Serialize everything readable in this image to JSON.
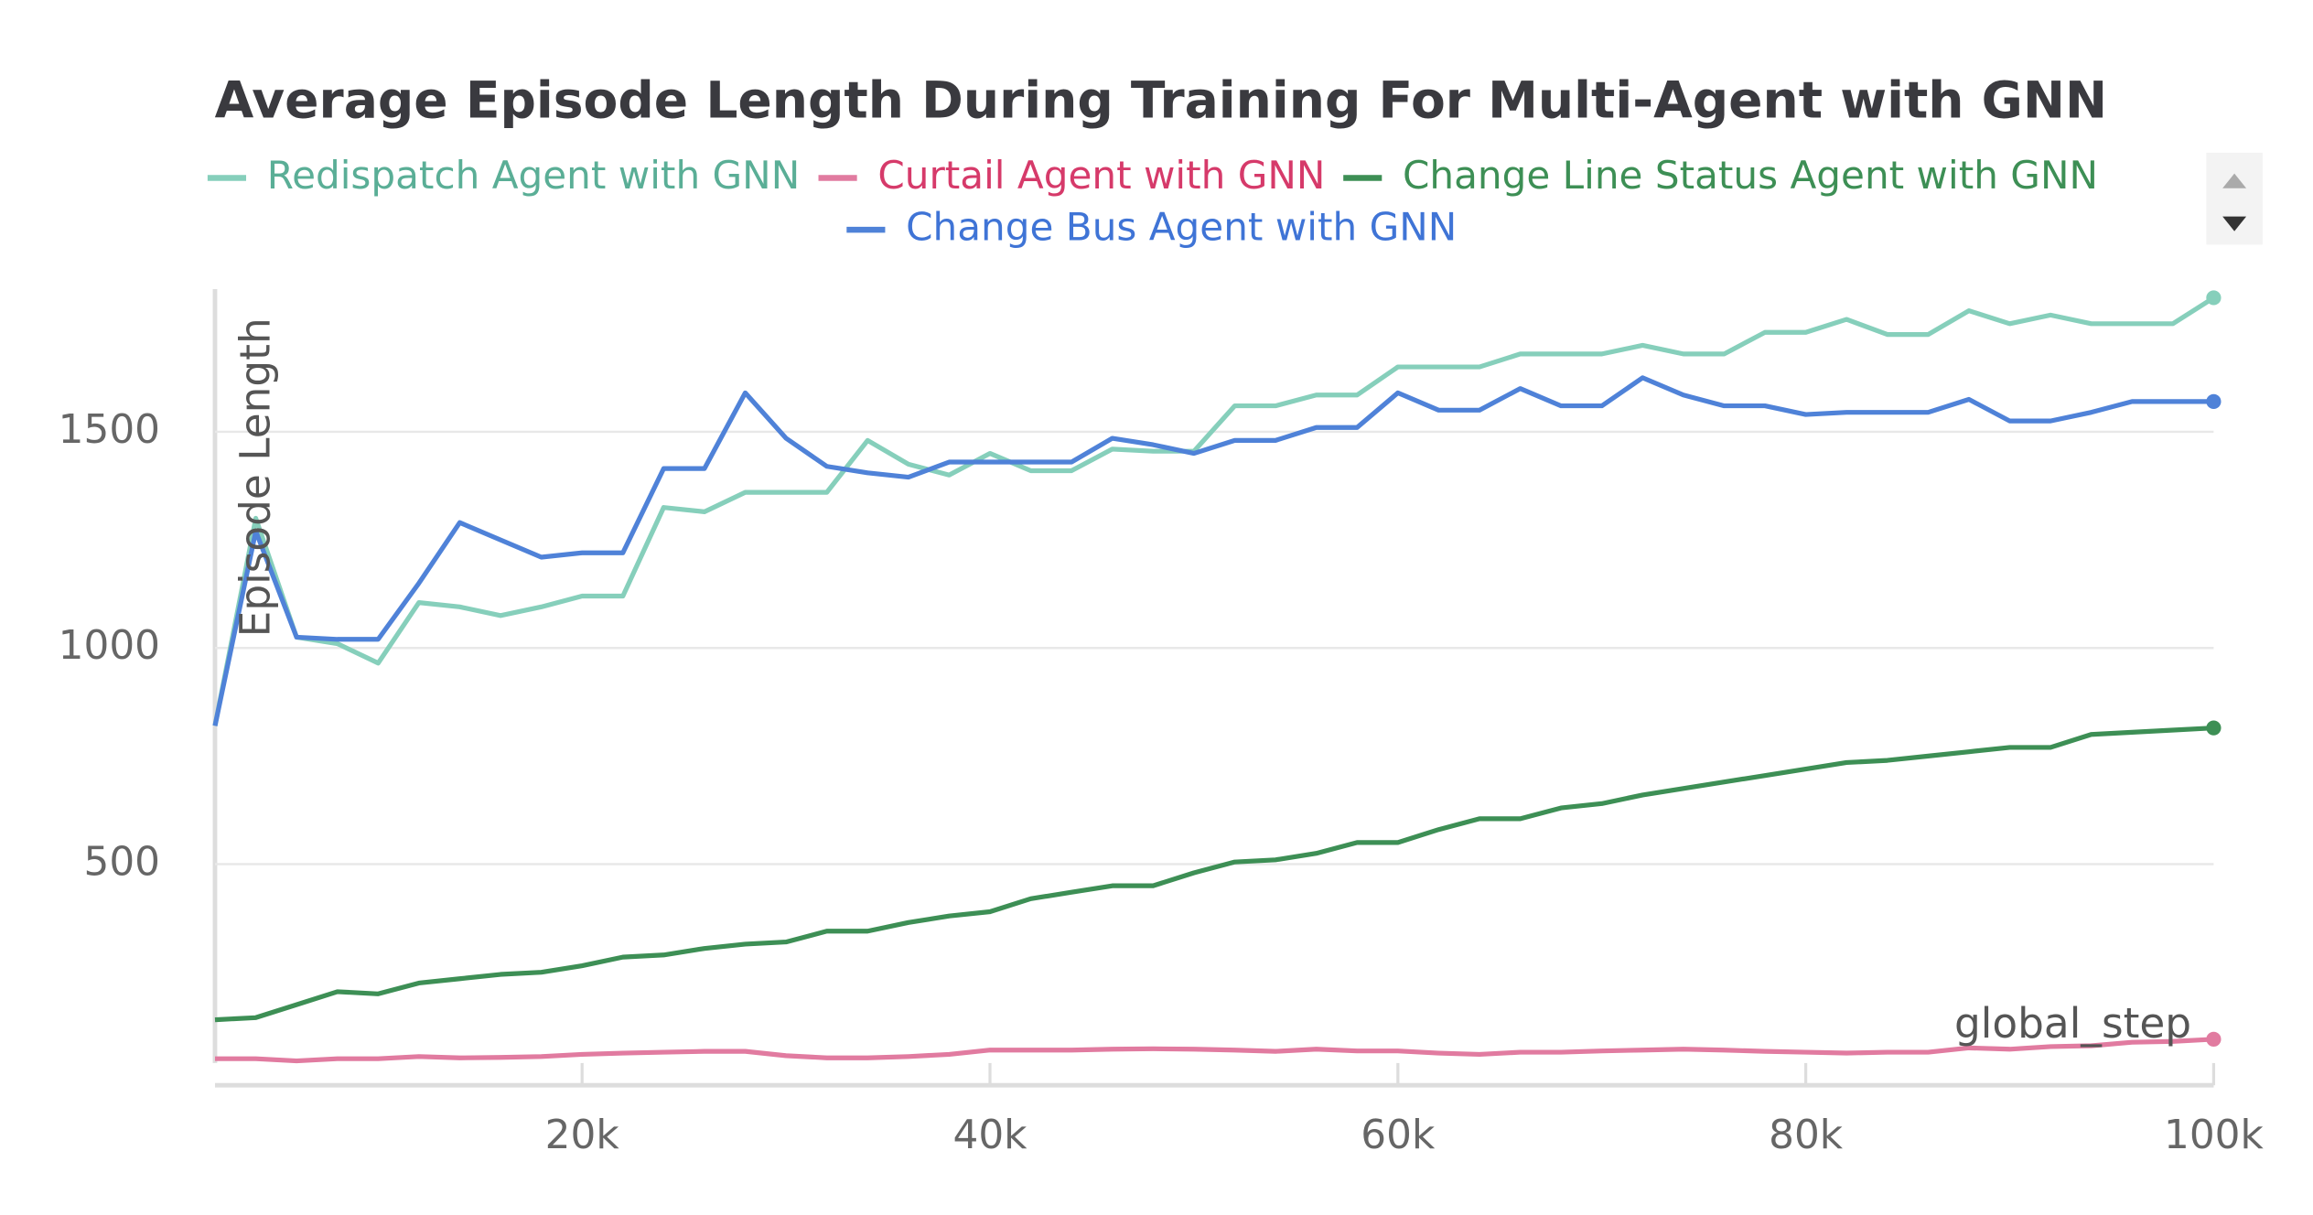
{
  "chart_data": {
    "type": "line",
    "title": "Average Episode Length During Training For Multi-Agent with GNN",
    "y_label": "Episode Length",
    "x_label": "global_step",
    "x": [
      2000,
      4000,
      6000,
      8000,
      10000,
      12000,
      14000,
      16000,
      18000,
      20000,
      22000,
      24000,
      26000,
      28000,
      30000,
      32000,
      34000,
      36000,
      38000,
      40000,
      42000,
      44000,
      46000,
      48000,
      50000,
      52000,
      54000,
      56000,
      58000,
      60000,
      62000,
      64000,
      66000,
      68000,
      70000,
      72000,
      74000,
      76000,
      78000,
      80000,
      82000,
      84000,
      86000,
      88000,
      90000,
      92000,
      94000,
      96000,
      98000,
      100000
    ],
    "series": [
      {
        "name": "Redispatch Agent with GNN",
        "color": "#86cfbb",
        "text_color": "#5aae96",
        "values": [
          820,
          1300,
          1025,
          1010,
          965,
          1105,
          1095,
          1075,
          1095,
          1120,
          1120,
          1325,
          1315,
          1360,
          1360,
          1360,
          1480,
          1425,
          1400,
          1450,
          1410,
          1410,
          1460,
          1455,
          1455,
          1560,
          1560,
          1585,
          1585,
          1650,
          1650,
          1650,
          1680,
          1680,
          1680,
          1700,
          1680,
          1680,
          1730,
          1730,
          1760,
          1725,
          1725,
          1780,
          1750,
          1770,
          1750,
          1750,
          1750,
          1810
        ]
      },
      {
        "name": "Curtail Agent with GNN",
        "color": "#e17ba0",
        "text_color": "#d63a6a",
        "values": [
          50,
          50,
          45,
          50,
          50,
          55,
          52,
          53,
          55,
          60,
          63,
          65,
          67,
          67,
          57,
          52,
          52,
          55,
          60,
          70,
          70,
          70,
          72,
          73,
          72,
          70,
          67,
          72,
          68,
          68,
          63,
          60,
          65,
          65,
          68,
          70,
          72,
          70,
          67,
          65,
          63,
          65,
          65,
          75,
          72,
          78,
          80,
          88,
          90,
          95
        ]
      },
      {
        "name": "Change Line Status Agent with GNN",
        "color": "#3d8f55",
        "text_color": "#3d8f55",
        "values": [
          140,
          145,
          175,
          205,
          200,
          225,
          235,
          245,
          250,
          265,
          285,
          290,
          305,
          315,
          320,
          345,
          345,
          365,
          380,
          390,
          420,
          435,
          450,
          450,
          480,
          505,
          510,
          525,
          550,
          550,
          580,
          605,
          605,
          630,
          640,
          660,
          675,
          690,
          705,
          720,
          735,
          740,
          750,
          760,
          770,
          770,
          800,
          805,
          810,
          815
        ]
      },
      {
        "name": "Change Bus Agent with GNN",
        "color": "#4f82d8",
        "text_color": "#3f74d6",
        "values": [
          820,
          1270,
          1025,
          1020,
          1020,
          1150,
          1290,
          1250,
          1210,
          1220,
          1220,
          1415,
          1415,
          1590,
          1485,
          1420,
          1405,
          1395,
          1430,
          1430,
          1430,
          1430,
          1485,
          1470,
          1450,
          1480,
          1480,
          1510,
          1510,
          1590,
          1550,
          1550,
          1600,
          1560,
          1560,
          1625,
          1585,
          1560,
          1560,
          1540,
          1545,
          1545,
          1545,
          1575,
          1525,
          1525,
          1545,
          1570,
          1570,
          1570
        ]
      }
    ],
    "xlim": [
      2000,
      100000
    ],
    "xticks": [
      {
        "value": 20000,
        "label": "20k"
      },
      {
        "value": 40000,
        "label": "40k"
      },
      {
        "value": 60000,
        "label": "60k"
      },
      {
        "value": 80000,
        "label": "80k"
      },
      {
        "value": 100000,
        "label": "100k"
      }
    ],
    "ylim": [
      40,
      1830
    ],
    "yticks": [
      500,
      1000,
      1500
    ],
    "grid": true
  }
}
